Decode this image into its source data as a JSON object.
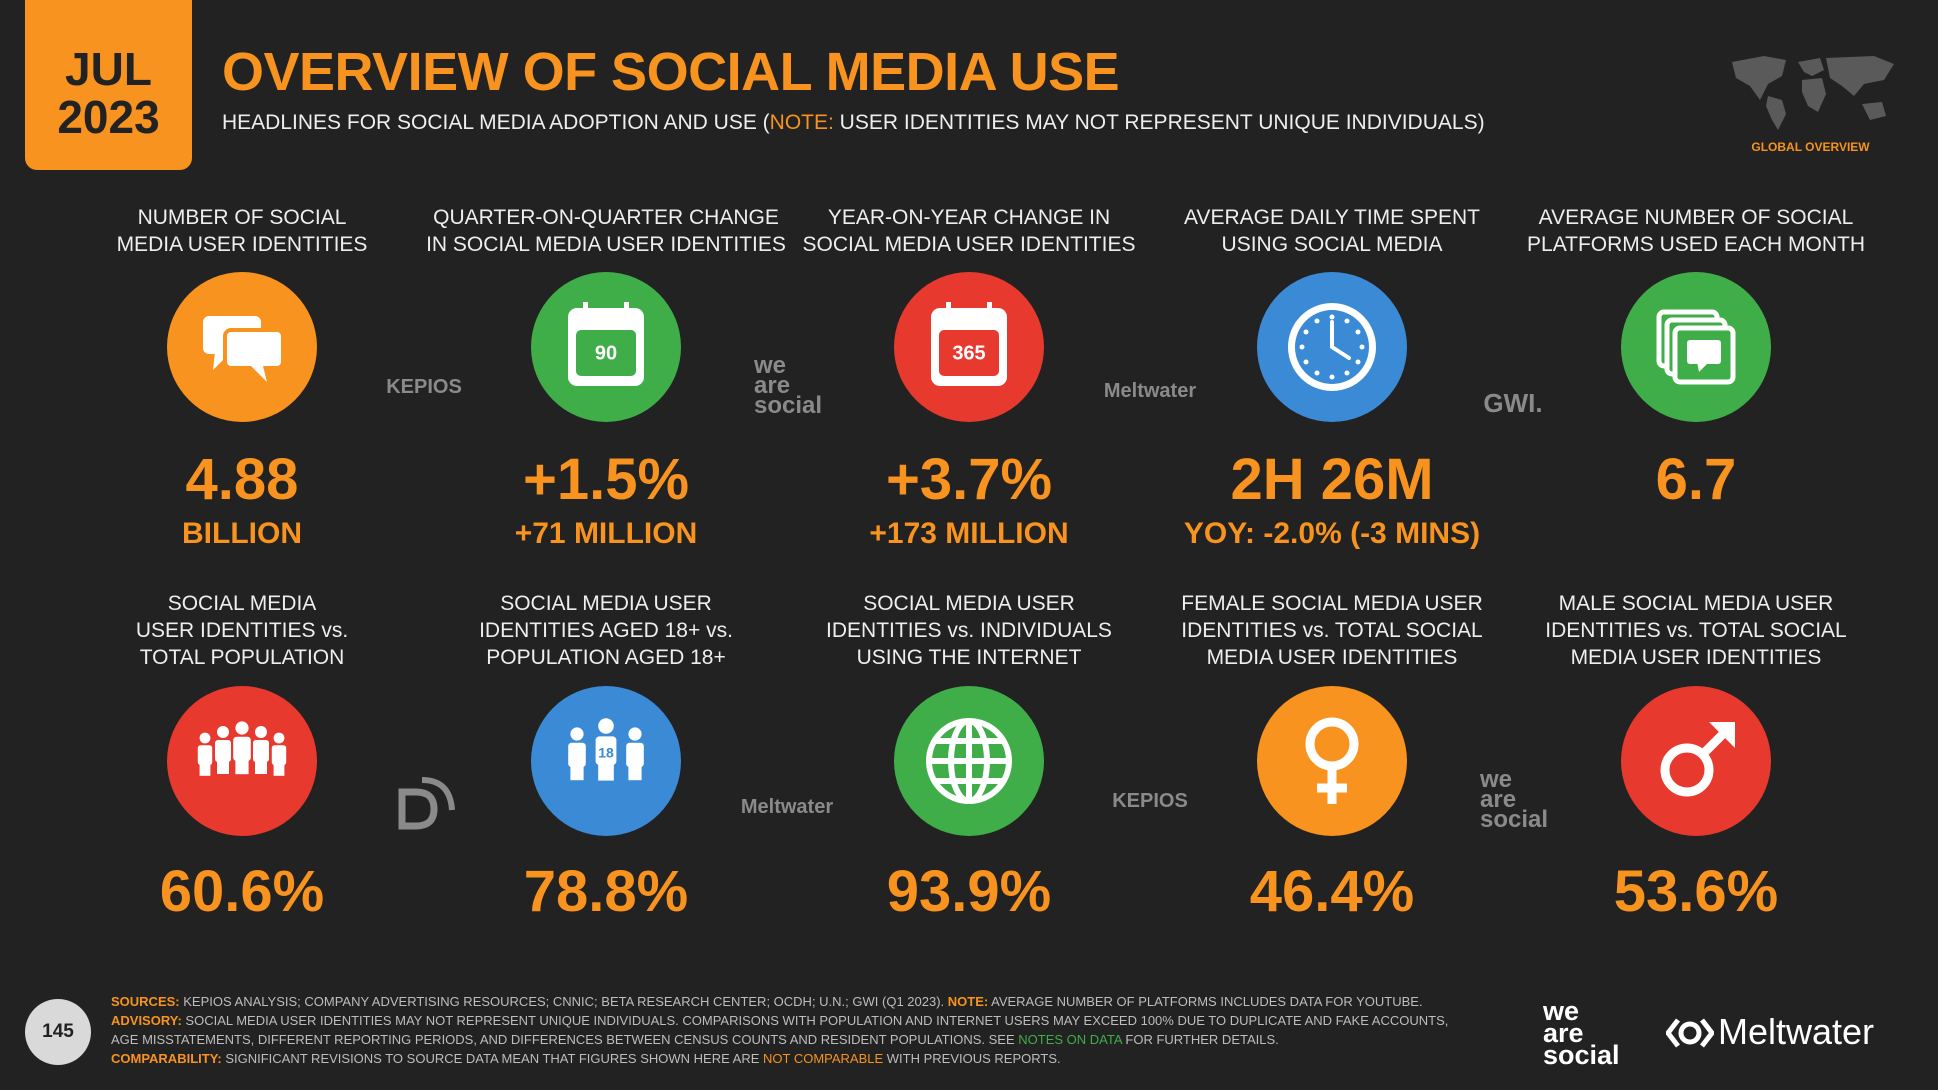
{
  "header": {
    "month": "JUL",
    "year": "2023",
    "title": "OVERVIEW OF SOCIAL MEDIA USE",
    "subtitle": [
      {
        "text": "HEADLINES FOR SOCIAL MEDIA ADOPTION AND USE ("
      },
      {
        "text": "NOTE:",
        "color": "#f7931e"
      },
      {
        "text": " USER IDENTITIES MAY NOT REPRESENT UNIQUE INDIVIDUALS)"
      }
    ],
    "section": "GLOBAL OVERVIEW"
  },
  "tiles": [
    {
      "label": [
        "NUMBER OF SOCIAL",
        "MEDIA USER IDENTITIES"
      ],
      "value": "4.88",
      "sub": "BILLION",
      "color": "#f7931e"
    },
    {
      "label": [
        "QUARTER-ON-QUARTER CHANGE",
        "IN SOCIAL MEDIA USER IDENTITIES"
      ],
      "value": "+1.5%",
      "sub": "+71 MILLION",
      "color": "#3fae49",
      "icon_text": "90"
    },
    {
      "label": [
        "YEAR-ON-YEAR CHANGE IN",
        "SOCIAL MEDIA USER IDENTITIES"
      ],
      "value": "+3.7%",
      "sub": "+173 MILLION",
      "color": "#e8392e",
      "icon_text": "365"
    },
    {
      "label": [
        "AVERAGE DAILY TIME SPENT",
        "USING SOCIAL MEDIA"
      ],
      "value": "2H 26M",
      "sub": "YOY: -2.0% (-3 MINS)",
      "color": "#3a8ad6"
    },
    {
      "label": [
        "AVERAGE NUMBER OF SOCIAL",
        "PLATFORMS USED EACH MONTH"
      ],
      "value": "6.7",
      "color": "#3fae49"
    },
    {
      "label": [
        "SOCIAL MEDIA",
        "USER IDENTITIES vs.",
        "TOTAL POPULATION"
      ],
      "value": "60.6%",
      "color": "#e8392e"
    },
    {
      "label": [
        "SOCIAL MEDIA USER",
        "IDENTITIES AGED 18+ vs.",
        "POPULATION AGED 18+"
      ],
      "value": "78.8%",
      "color": "#3a8ad6",
      "icon_text": "18"
    },
    {
      "label": [
        "SOCIAL MEDIA USER",
        "IDENTITIES vs. INDIVIDUALS",
        "USING THE INTERNET"
      ],
      "value": "93.9%",
      "color": "#3fae49"
    },
    {
      "label": [
        "FEMALE SOCIAL MEDIA USER",
        "IDENTITIES vs. TOTAL SOCIAL",
        "MEDIA USER IDENTITIES"
      ],
      "value": "46.4%",
      "color": "#f7931e"
    },
    {
      "label": [
        "MALE SOCIAL MEDIA USER",
        "IDENTITIES vs. TOTAL SOCIAL",
        "MEDIA USER IDENTITIES"
      ],
      "value": "53.6%",
      "color": "#e8392e"
    }
  ],
  "logos": [
    {
      "lines": [
        "KEPIOS"
      ]
    },
    {
      "lines": [
        "we",
        "are",
        "social"
      ]
    },
    {
      "lines": [
        "Meltwater"
      ]
    },
    {
      "lines": [
        "GWI."
      ]
    },
    {
      "lines": [
        "Meltwater"
      ]
    },
    {
      "lines": [
        "KEPIOS"
      ]
    },
    {
      "lines": [
        "we",
        "are",
        "social"
      ]
    }
  ],
  "footer": {
    "page": "145",
    "paragraphs": [
      [
        {
          "text": "SOURCES:",
          "color": "#f7931e",
          "bold": true
        },
        {
          "text": " KEPIOS ANALYSIS; COMPANY ADVERTISING RESOURCES; CNNIC; BETA RESEARCH CENTER; OCDH; U.N.; GWI (Q1 2023). "
        },
        {
          "text": "NOTE:",
          "color": "#f7931e",
          "bold": true
        },
        {
          "text": " AVERAGE NUMBER OF PLATFORMS INCLUDES DATA FOR YOUTUBE. "
        },
        {
          "text": "ADVISORY:",
          "color": "#f7931e",
          "bold": true
        },
        {
          "text": " SOCIAL MEDIA USER IDENTITIES MAY NOT REPRESENT UNIQUE INDIVIDUALS. COMPARISONS WITH POPULATION AND INTERNET USERS MAY EXCEED 100% DUE TO DUPLICATE AND FAKE ACCOUNTS, AGE MISSTATEMENTS, DIFFERENT REPORTING PERIODS, AND DIFFERENCES BETWEEN CENSUS COUNTS AND RESIDENT POPULATIONS. SEE "
        },
        {
          "text": "NOTES ON DATA",
          "color": "#3fae49"
        },
        {
          "text": " FOR FURTHER DETAILS."
        }
      ],
      [
        {
          "text": "COMPARABILITY:",
          "color": "#f7931e",
          "bold": true
        },
        {
          "text": " SIGNIFICANT REVISIONS TO SOURCE DATA MEAN THAT FIGURES SHOWN HERE ARE "
        },
        {
          "text": "NOT COMPARABLE",
          "color": "#f7931e"
        },
        {
          "text": " WITH PREVIOUS REPORTS."
        }
      ]
    ],
    "brand": {
      "lines": [
        "we",
        "are",
        "social"
      ],
      "partner": "Meltwater"
    }
  }
}
